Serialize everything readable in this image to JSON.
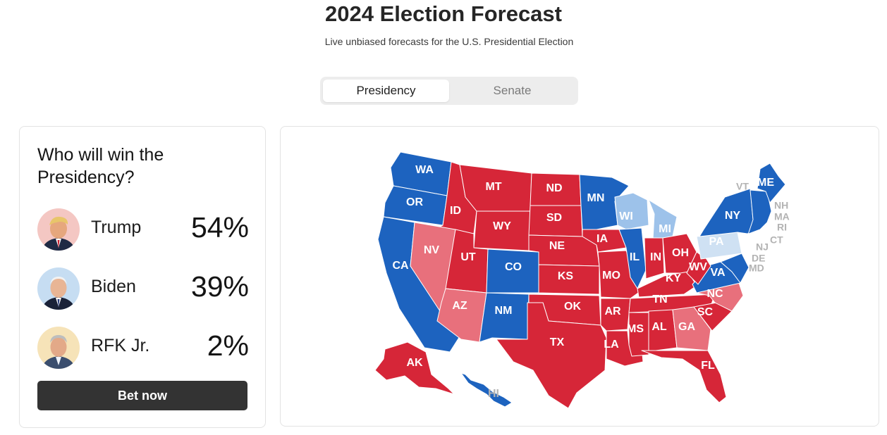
{
  "header": {
    "title": "2024 Election Forecast",
    "subtitle": "Live unbiased forecasts for the U.S. Presidential Election"
  },
  "tabs": [
    {
      "label": "Presidency",
      "active": true
    },
    {
      "label": "Senate",
      "active": false
    }
  ],
  "sidebar": {
    "question": "Who will win the Presidency?",
    "candidates": [
      {
        "name": "Trump",
        "percent": "54%",
        "avatar_icon": "trump-portrait"
      },
      {
        "name": "Biden",
        "percent": "39%",
        "avatar_icon": "biden-portrait"
      },
      {
        "name": "RFK Jr.",
        "percent": "2%",
        "avatar_icon": "rfk-portrait"
      }
    ],
    "bet_label": "Bet now"
  },
  "map": {
    "colors": {
      "safe_red": "#d62638",
      "lean_red": "#e8707c",
      "safe_blue": "#1d63bf",
      "lean_blue": "#9dc2ea",
      "tossup": "#cfe1f3",
      "label_gray": "#b3b3b3"
    },
    "states": [
      {
        "abbr": "WA",
        "rating": "safe_blue"
      },
      {
        "abbr": "OR",
        "rating": "safe_blue"
      },
      {
        "abbr": "CA",
        "rating": "safe_blue"
      },
      {
        "abbr": "ID",
        "rating": "safe_red"
      },
      {
        "abbr": "NV",
        "rating": "lean_red"
      },
      {
        "abbr": "MT",
        "rating": "safe_red"
      },
      {
        "abbr": "WY",
        "rating": "safe_red"
      },
      {
        "abbr": "UT",
        "rating": "safe_red"
      },
      {
        "abbr": "AZ",
        "rating": "lean_red"
      },
      {
        "abbr": "CO",
        "rating": "safe_blue"
      },
      {
        "abbr": "NM",
        "rating": "safe_blue"
      },
      {
        "abbr": "ND",
        "rating": "safe_red"
      },
      {
        "abbr": "SD",
        "rating": "safe_red"
      },
      {
        "abbr": "NE",
        "rating": "safe_red"
      },
      {
        "abbr": "KS",
        "rating": "safe_red"
      },
      {
        "abbr": "OK",
        "rating": "safe_red"
      },
      {
        "abbr": "TX",
        "rating": "safe_red"
      },
      {
        "abbr": "MN",
        "rating": "safe_blue"
      },
      {
        "abbr": "IA",
        "rating": "safe_red"
      },
      {
        "abbr": "MO",
        "rating": "safe_red"
      },
      {
        "abbr": "AR",
        "rating": "safe_red"
      },
      {
        "abbr": "LA",
        "rating": "safe_red"
      },
      {
        "abbr": "WI",
        "rating": "lean_blue"
      },
      {
        "abbr": "IL",
        "rating": "safe_blue"
      },
      {
        "abbr": "MI",
        "rating": "lean_blue"
      },
      {
        "abbr": "IN",
        "rating": "safe_red"
      },
      {
        "abbr": "OH",
        "rating": "safe_red"
      },
      {
        "abbr": "KY",
        "rating": "safe_red"
      },
      {
        "abbr": "TN",
        "rating": "safe_red"
      },
      {
        "abbr": "MS",
        "rating": "safe_red"
      },
      {
        "abbr": "AL",
        "rating": "safe_red"
      },
      {
        "abbr": "GA",
        "rating": "lean_red"
      },
      {
        "abbr": "FL",
        "rating": "safe_red"
      },
      {
        "abbr": "SC",
        "rating": "safe_red"
      },
      {
        "abbr": "NC",
        "rating": "lean_red"
      },
      {
        "abbr": "VA",
        "rating": "safe_blue"
      },
      {
        "abbr": "WV",
        "rating": "safe_red"
      },
      {
        "abbr": "PA",
        "rating": "tossup"
      },
      {
        "abbr": "NY",
        "rating": "safe_blue"
      },
      {
        "abbr": "ME",
        "rating": "safe_blue"
      },
      {
        "abbr": "AK",
        "rating": "safe_red"
      },
      {
        "abbr": "HI",
        "rating": "safe_blue"
      }
    ],
    "small_labels": [
      "VT",
      "NH",
      "MA",
      "RI",
      "CT",
      "NJ",
      "DE",
      "MD"
    ]
  }
}
